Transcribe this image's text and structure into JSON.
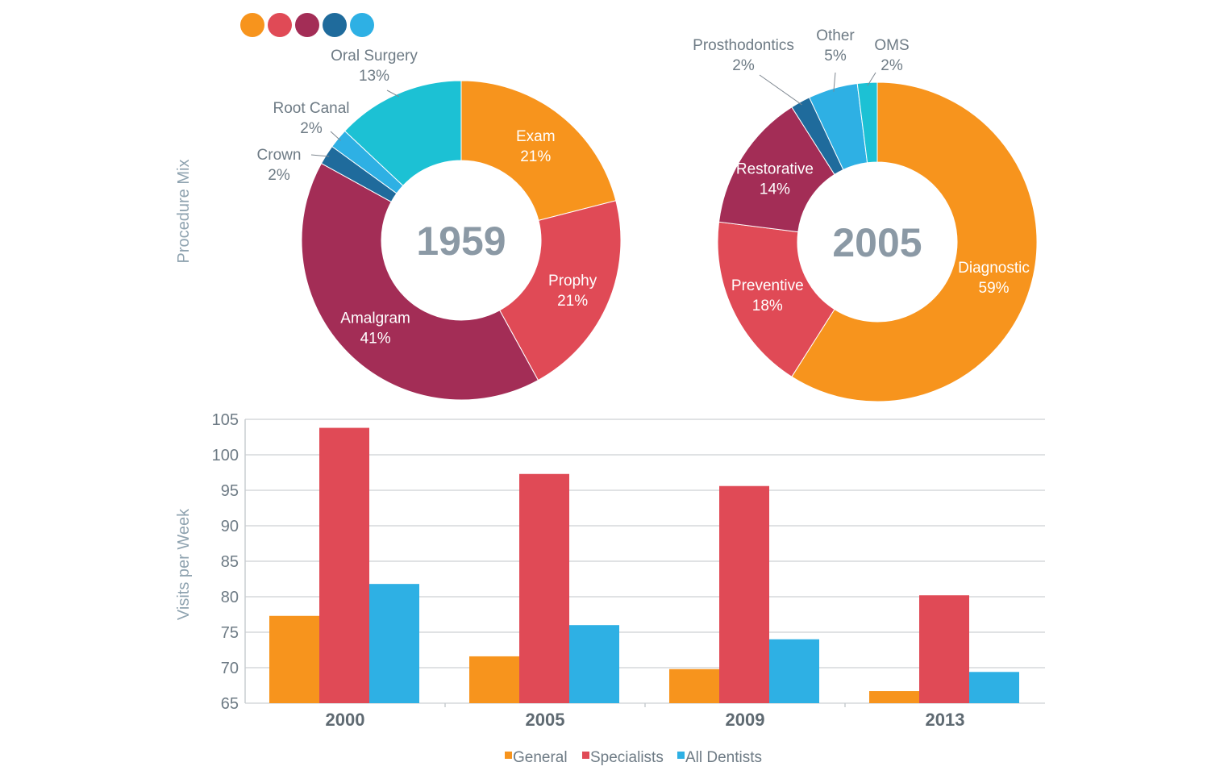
{
  "palette_dots": [
    {
      "name": "orange-dot",
      "color": "#F7941D"
    },
    {
      "name": "red-dot",
      "color": "#E04A56"
    },
    {
      "name": "maroon-dot",
      "color": "#A32D56"
    },
    {
      "name": "navy-dot",
      "color": "#1F6B9C"
    },
    {
      "name": "sky-dot",
      "color": "#2EB0E4"
    }
  ],
  "chart_data": [
    {
      "type": "pie",
      "style": "donut",
      "center_label": "1959",
      "side_label": "Procedure Mix",
      "slices": [
        {
          "label": "Exam",
          "value": 21,
          "value_label": "21%",
          "color": "#F7941D",
          "label_inside": true
        },
        {
          "label": "Prophy",
          "value": 21,
          "value_label": "21%",
          "color": "#E04A56",
          "label_inside": true
        },
        {
          "label": "Amalgram",
          "value": 41,
          "value_label": "41%",
          "color": "#A32D56",
          "label_inside": true
        },
        {
          "label": "Crown",
          "value": 2,
          "value_label": "2%",
          "color": "#1F6B9C",
          "label_inside": false
        },
        {
          "label": "Root Canal",
          "value": 2,
          "value_label": "2%",
          "color": "#2EB0E4",
          "label_inside": false
        },
        {
          "label": "Oral Surgery",
          "value": 13,
          "value_label": "13%",
          "color": "#1CC1D4",
          "label_inside": false
        }
      ]
    },
    {
      "type": "pie",
      "style": "donut",
      "center_label": "2005",
      "slices": [
        {
          "label": "Diagnostic",
          "value": 59,
          "value_label": "59%",
          "color": "#F7941D",
          "label_inside": true
        },
        {
          "label": "Preventive",
          "value": 18,
          "value_label": "18%",
          "color": "#E04A56",
          "label_inside": true
        },
        {
          "label": "Restorative",
          "value": 14,
          "value_label": "14%",
          "color": "#A32D56",
          "label_inside": true
        },
        {
          "label": "Prosthodontics",
          "value": 2,
          "value_label": "2%",
          "color": "#1F6B9C",
          "label_inside": false
        },
        {
          "label": "Other",
          "value": 5,
          "value_label": "5%",
          "color": "#2EB0E4",
          "label_inside": false
        },
        {
          "label": "OMS",
          "value": 2,
          "value_label": "2%",
          "color": "#1CC1D4",
          "label_inside": false
        }
      ]
    },
    {
      "type": "bar",
      "ylabel": "Visits per Week",
      "ylim": [
        65,
        105
      ],
      "yticks": [
        65,
        70,
        75,
        80,
        85,
        90,
        95,
        100,
        105
      ],
      "categories": [
        "2000",
        "2005",
        "2009",
        "2013"
      ],
      "grid": true,
      "legend_position": "bottom",
      "series": [
        {
          "name": "General",
          "color": "#F7941D",
          "values": [
            77.3,
            71.6,
            69.8,
            66.7
          ]
        },
        {
          "name": "Specialists",
          "color": "#E04A56",
          "values": [
            103.8,
            97.3,
            95.6,
            80.2
          ]
        },
        {
          "name": "All Dentists",
          "color": "#2EB0E4",
          "values": [
            81.8,
            76.0,
            74.0,
            69.4
          ]
        }
      ]
    }
  ]
}
